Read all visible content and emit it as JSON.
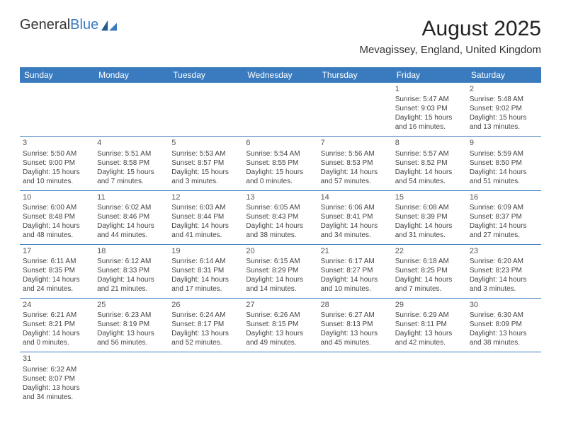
{
  "brand": {
    "name1": "General",
    "name2": "Blue"
  },
  "title": "August 2025",
  "location": "Mevagissey, England, United Kingdom",
  "colors": {
    "accent": "#3a7bbf",
    "text": "#333333",
    "bg": "#ffffff"
  },
  "days_of_week": [
    "Sunday",
    "Monday",
    "Tuesday",
    "Wednesday",
    "Thursday",
    "Friday",
    "Saturday"
  ],
  "weeks": [
    [
      null,
      null,
      null,
      null,
      null,
      {
        "n": "1",
        "sr": "Sunrise: 5:47 AM",
        "ss": "Sunset: 9:03 PM",
        "d1": "Daylight: 15 hours",
        "d2": "and 16 minutes."
      },
      {
        "n": "2",
        "sr": "Sunrise: 5:48 AM",
        "ss": "Sunset: 9:02 PM",
        "d1": "Daylight: 15 hours",
        "d2": "and 13 minutes."
      }
    ],
    [
      {
        "n": "3",
        "sr": "Sunrise: 5:50 AM",
        "ss": "Sunset: 9:00 PM",
        "d1": "Daylight: 15 hours",
        "d2": "and 10 minutes."
      },
      {
        "n": "4",
        "sr": "Sunrise: 5:51 AM",
        "ss": "Sunset: 8:58 PM",
        "d1": "Daylight: 15 hours",
        "d2": "and 7 minutes."
      },
      {
        "n": "5",
        "sr": "Sunrise: 5:53 AM",
        "ss": "Sunset: 8:57 PM",
        "d1": "Daylight: 15 hours",
        "d2": "and 3 minutes."
      },
      {
        "n": "6",
        "sr": "Sunrise: 5:54 AM",
        "ss": "Sunset: 8:55 PM",
        "d1": "Daylight: 15 hours",
        "d2": "and 0 minutes."
      },
      {
        "n": "7",
        "sr": "Sunrise: 5:56 AM",
        "ss": "Sunset: 8:53 PM",
        "d1": "Daylight: 14 hours",
        "d2": "and 57 minutes."
      },
      {
        "n": "8",
        "sr": "Sunrise: 5:57 AM",
        "ss": "Sunset: 8:52 PM",
        "d1": "Daylight: 14 hours",
        "d2": "and 54 minutes."
      },
      {
        "n": "9",
        "sr": "Sunrise: 5:59 AM",
        "ss": "Sunset: 8:50 PM",
        "d1": "Daylight: 14 hours",
        "d2": "and 51 minutes."
      }
    ],
    [
      {
        "n": "10",
        "sr": "Sunrise: 6:00 AM",
        "ss": "Sunset: 8:48 PM",
        "d1": "Daylight: 14 hours",
        "d2": "and 48 minutes."
      },
      {
        "n": "11",
        "sr": "Sunrise: 6:02 AM",
        "ss": "Sunset: 8:46 PM",
        "d1": "Daylight: 14 hours",
        "d2": "and 44 minutes."
      },
      {
        "n": "12",
        "sr": "Sunrise: 6:03 AM",
        "ss": "Sunset: 8:44 PM",
        "d1": "Daylight: 14 hours",
        "d2": "and 41 minutes."
      },
      {
        "n": "13",
        "sr": "Sunrise: 6:05 AM",
        "ss": "Sunset: 8:43 PM",
        "d1": "Daylight: 14 hours",
        "d2": "and 38 minutes."
      },
      {
        "n": "14",
        "sr": "Sunrise: 6:06 AM",
        "ss": "Sunset: 8:41 PM",
        "d1": "Daylight: 14 hours",
        "d2": "and 34 minutes."
      },
      {
        "n": "15",
        "sr": "Sunrise: 6:08 AM",
        "ss": "Sunset: 8:39 PM",
        "d1": "Daylight: 14 hours",
        "d2": "and 31 minutes."
      },
      {
        "n": "16",
        "sr": "Sunrise: 6:09 AM",
        "ss": "Sunset: 8:37 PM",
        "d1": "Daylight: 14 hours",
        "d2": "and 27 minutes."
      }
    ],
    [
      {
        "n": "17",
        "sr": "Sunrise: 6:11 AM",
        "ss": "Sunset: 8:35 PM",
        "d1": "Daylight: 14 hours",
        "d2": "and 24 minutes."
      },
      {
        "n": "18",
        "sr": "Sunrise: 6:12 AM",
        "ss": "Sunset: 8:33 PM",
        "d1": "Daylight: 14 hours",
        "d2": "and 21 minutes."
      },
      {
        "n": "19",
        "sr": "Sunrise: 6:14 AM",
        "ss": "Sunset: 8:31 PM",
        "d1": "Daylight: 14 hours",
        "d2": "and 17 minutes."
      },
      {
        "n": "20",
        "sr": "Sunrise: 6:15 AM",
        "ss": "Sunset: 8:29 PM",
        "d1": "Daylight: 14 hours",
        "d2": "and 14 minutes."
      },
      {
        "n": "21",
        "sr": "Sunrise: 6:17 AM",
        "ss": "Sunset: 8:27 PM",
        "d1": "Daylight: 14 hours",
        "d2": "and 10 minutes."
      },
      {
        "n": "22",
        "sr": "Sunrise: 6:18 AM",
        "ss": "Sunset: 8:25 PM",
        "d1": "Daylight: 14 hours",
        "d2": "and 7 minutes."
      },
      {
        "n": "23",
        "sr": "Sunrise: 6:20 AM",
        "ss": "Sunset: 8:23 PM",
        "d1": "Daylight: 14 hours",
        "d2": "and 3 minutes."
      }
    ],
    [
      {
        "n": "24",
        "sr": "Sunrise: 6:21 AM",
        "ss": "Sunset: 8:21 PM",
        "d1": "Daylight: 14 hours",
        "d2": "and 0 minutes."
      },
      {
        "n": "25",
        "sr": "Sunrise: 6:23 AM",
        "ss": "Sunset: 8:19 PM",
        "d1": "Daylight: 13 hours",
        "d2": "and 56 minutes."
      },
      {
        "n": "26",
        "sr": "Sunrise: 6:24 AM",
        "ss": "Sunset: 8:17 PM",
        "d1": "Daylight: 13 hours",
        "d2": "and 52 minutes."
      },
      {
        "n": "27",
        "sr": "Sunrise: 6:26 AM",
        "ss": "Sunset: 8:15 PM",
        "d1": "Daylight: 13 hours",
        "d2": "and 49 minutes."
      },
      {
        "n": "28",
        "sr": "Sunrise: 6:27 AM",
        "ss": "Sunset: 8:13 PM",
        "d1": "Daylight: 13 hours",
        "d2": "and 45 minutes."
      },
      {
        "n": "29",
        "sr": "Sunrise: 6:29 AM",
        "ss": "Sunset: 8:11 PM",
        "d1": "Daylight: 13 hours",
        "d2": "and 42 minutes."
      },
      {
        "n": "30",
        "sr": "Sunrise: 6:30 AM",
        "ss": "Sunset: 8:09 PM",
        "d1": "Daylight: 13 hours",
        "d2": "and 38 minutes."
      }
    ],
    [
      {
        "n": "31",
        "sr": "Sunrise: 6:32 AM",
        "ss": "Sunset: 8:07 PM",
        "d1": "Daylight: 13 hours",
        "d2": "and 34 minutes."
      },
      null,
      null,
      null,
      null,
      null,
      null
    ]
  ]
}
